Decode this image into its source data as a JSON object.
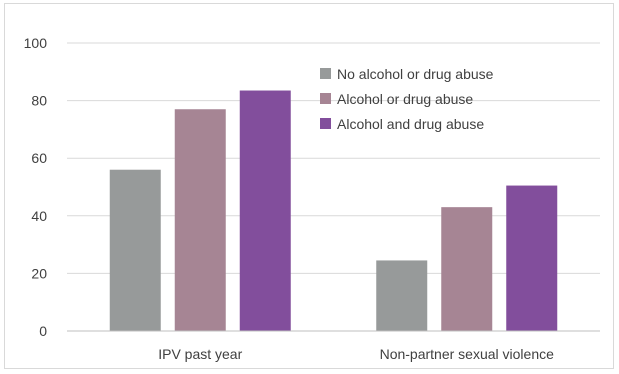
{
  "chart_data": {
    "type": "bar",
    "categories": [
      "IPV past year",
      "Non-partner sexual violence"
    ],
    "series": [
      {
        "name": "No alcohol or drug abuse",
        "values": [
          56,
          24.5
        ],
        "color": "#979a9a"
      },
      {
        "name": "Alcohol or drug abuse",
        "values": [
          77,
          43
        ],
        "color": "#a68594"
      },
      {
        "name": "Alcohol and drug abuse",
        "values": [
          83.5,
          50.5
        ],
        "color": "#824e9c"
      }
    ],
    "title": "",
    "xlabel": "",
    "ylabel": "",
    "ylim": [
      0,
      100
    ],
    "yticks": [
      "0",
      "20",
      "40",
      "60",
      "80",
      "100"
    ],
    "grid": true,
    "legend_position": "top-right"
  }
}
